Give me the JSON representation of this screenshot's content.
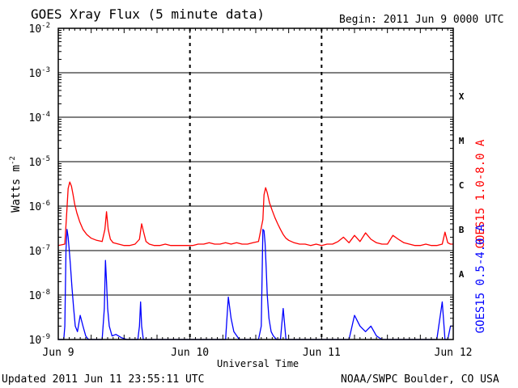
{
  "header": {
    "title": "GOES Xray Flux (5 minute data)",
    "begin": "Begin:  2011 Jun 9 0000 UTC"
  },
  "footer": {
    "updated": "Updated 2011 Jun 11 23:55:11 UTC",
    "credit": "NOAA/SWPC Boulder, CO USA"
  },
  "colors": {
    "long_channel": "#ff0000",
    "short_channel": "#0000ff",
    "axes": "#000000"
  },
  "chart_data": {
    "type": "line",
    "title": "GOES Xray Flux (5 minute data)",
    "xlabel": "Universal Time",
    "ylabel": "Watts m-2",
    "y_scale": "log",
    "ylim": [
      1e-09,
      0.01
    ],
    "y_ticks": [
      {
        "base": "10",
        "exp": "-2"
      },
      {
        "base": "10",
        "exp": "-3"
      },
      {
        "base": "10",
        "exp": "-4"
      },
      {
        "base": "10",
        "exp": "-5"
      },
      {
        "base": "10",
        "exp": "-6"
      },
      {
        "base": "10",
        "exp": "-7"
      },
      {
        "base": "10",
        "exp": "-8"
      },
      {
        "base": "10",
        "exp": "-9"
      }
    ],
    "x_ticks": [
      "Jun 9",
      "Jun 10",
      "Jun 11",
      "Jun 12"
    ],
    "x_range_hours": [
      0,
      72
    ],
    "flare_classes": [
      {
        "label": "X",
        "at": 0.0003
      },
      {
        "label": "M",
        "at": 3e-05
      },
      {
        "label": "C",
        "at": 3e-06
      },
      {
        "label": "B",
        "at": 3e-07
      },
      {
        "label": "A",
        "at": 3e-08
      }
    ],
    "grid": true,
    "legend_position": "right",
    "series": [
      {
        "name": "GOES15 1.0-8.0 A",
        "color": "#ff0000",
        "x_hours": [
          0,
          1.2,
          1.5,
          1.8,
          2.1,
          2.4,
          2.7,
          3.0,
          3.4,
          3.9,
          4.5,
          5.2,
          6.0,
          7.0,
          8.0,
          8.5,
          8.8,
          9.1,
          9.5,
          10.0,
          11,
          12,
          13,
          14,
          14.8,
          15.2,
          15.6,
          16.0,
          16.6,
          17.5,
          18.5,
          19.5,
          20.5,
          21.5,
          22.5,
          23.5,
          24.5,
          25.5,
          26.5,
          27.5,
          28.5,
          29.5,
          30.5,
          31.5,
          32.5,
          33.5,
          34.5,
          35.5,
          36.5,
          37.3,
          37.5,
          37.8,
          38.1,
          38.5,
          39,
          39.5,
          40,
          40.5,
          41,
          41.5,
          42,
          43,
          44,
          45,
          46,
          47,
          48,
          49,
          50,
          51,
          52,
          53,
          54,
          55,
          56,
          57,
          58,
          59,
          60,
          61,
          62,
          63,
          64,
          65,
          66,
          67,
          68,
          69,
          70,
          70.5,
          71,
          71.5,
          72
        ],
        "y": [
          1.3e-07,
          1.4e-07,
          6e-07,
          2.5e-06,
          3.5e-06,
          2.8e-06,
          1.8e-06,
          1.1e-06,
          7e-07,
          4.5e-07,
          3e-07,
          2.3e-07,
          1.9e-07,
          1.7e-07,
          1.6e-07,
          3e-07,
          7.5e-07,
          3e-07,
          1.8e-07,
          1.5e-07,
          1.4e-07,
          1.3e-07,
          1.3e-07,
          1.4e-07,
          1.8e-07,
          4e-07,
          2.5e-07,
          1.6e-07,
          1.4e-07,
          1.3e-07,
          1.3e-07,
          1.4e-07,
          1.3e-07,
          1.3e-07,
          1.3e-07,
          1.3e-07,
          1.3e-07,
          1.4e-07,
          1.4e-07,
          1.5e-07,
          1.4e-07,
          1.4e-07,
          1.5e-07,
          1.4e-07,
          1.5e-07,
          1.4e-07,
          1.4e-07,
          1.5e-07,
          1.6e-07,
          5e-07,
          1.8e-06,
          2.6e-06,
          2e-06,
          1.2e-06,
          8e-07,
          5.5e-07,
          4e-07,
          3e-07,
          2.3e-07,
          1.9e-07,
          1.7e-07,
          1.5e-07,
          1.4e-07,
          1.4e-07,
          1.3e-07,
          1.4e-07,
          1.3e-07,
          1.4e-07,
          1.4e-07,
          1.6e-07,
          2e-07,
          1.5e-07,
          2.2e-07,
          1.6e-07,
          2.5e-07,
          1.8e-07,
          1.5e-07,
          1.4e-07,
          1.4e-07,
          2.2e-07,
          1.8e-07,
          1.5e-07,
          1.4e-07,
          1.3e-07,
          1.3e-07,
          1.4e-07,
          1.3e-07,
          1.3e-07,
          1.4e-07,
          2.6e-07,
          1.5e-07,
          1.4e-07,
          1.4e-07
        ],
        "note_axis": "log"
      },
      {
        "name": "GOES15 0.5-4.0 A",
        "color": "#0000ff",
        "x_hours": [
          0,
          1.0,
          1.2,
          1.4,
          1.6,
          1.8,
          2.0,
          2.2,
          2.5,
          2.8,
          3.1,
          3.5,
          4.0,
          4.5,
          5.0,
          5.5,
          6.0,
          6.5,
          7.0,
          7.5,
          8.0,
          8.4,
          8.6,
          8.8,
          9.0,
          9.3,
          9.8,
          10.5,
          11.5,
          12.5,
          13.5,
          14.5,
          14.8,
          15.0,
          15.2,
          15.5,
          16,
          17,
          18,
          19,
          20,
          21,
          22,
          23,
          24,
          25,
          26,
          27,
          28,
          29,
          30,
          30.5,
          31,
          31.5,
          32,
          33,
          34,
          35,
          36,
          36.5,
          37,
          37.3,
          37.5,
          37.7,
          37.9,
          38.1,
          38.4,
          38.8,
          39.2,
          39.8,
          40.5,
          41,
          41.5,
          42,
          43,
          44,
          45,
          46,
          47,
          48,
          49,
          50,
          51,
          52,
          53,
          54,
          55,
          56,
          57,
          58,
          59,
          60,
          61,
          62,
          63,
          64,
          65,
          66,
          67,
          68,
          69,
          70,
          70.5,
          71,
          71.5,
          72
        ],
        "y": [
          9e-10,
          9e-10,
          2e-09,
          1e-07,
          3e-07,
          2e-07,
          1e-07,
          5e-08,
          1.5e-08,
          5e-09,
          2e-09,
          1.5e-09,
          3.5e-09,
          2e-09,
          1.2e-09,
          1e-09,
          1e-09,
          1e-09,
          1e-09,
          1e-09,
          1e-09,
          5e-09,
          6e-08,
          2e-08,
          5e-09,
          2e-09,
          1.2e-09,
          1.3e-09,
          1.1e-09,
          1e-09,
          1e-09,
          1e-09,
          2e-09,
          7e-09,
          2e-09,
          1e-09,
          1e-09,
          9e-10,
          9e-10,
          9e-10,
          9e-10,
          9e-10,
          9e-10,
          9e-10,
          9e-10,
          9e-10,
          9e-10,
          9e-10,
          9e-10,
          9e-10,
          9e-10,
          9e-10,
          9e-09,
          3e-09,
          1.5e-09,
          1e-09,
          9e-10,
          9e-10,
          9e-10,
          1e-09,
          2e-09,
          3e-07,
          2.8e-07,
          1.5e-07,
          4e-08,
          1e-08,
          3e-09,
          1.5e-09,
          1.2e-09,
          1e-09,
          1e-09,
          5e-09,
          1e-09,
          9e-10,
          9e-10,
          9e-10,
          9e-10,
          9e-10,
          9e-10,
          9e-10,
          9e-10,
          9e-10,
          9e-10,
          9e-10,
          9e-10,
          3.5e-09,
          2e-09,
          1.5e-09,
          2e-09,
          1.2e-09,
          1e-09,
          9e-10,
          9e-10,
          9e-10,
          9e-10,
          9e-10,
          9e-10,
          1e-09,
          9e-10,
          9e-10,
          9e-10,
          7e-09,
          1e-09,
          9e-10,
          2e-09,
          2e-09
        ]
      }
    ]
  }
}
